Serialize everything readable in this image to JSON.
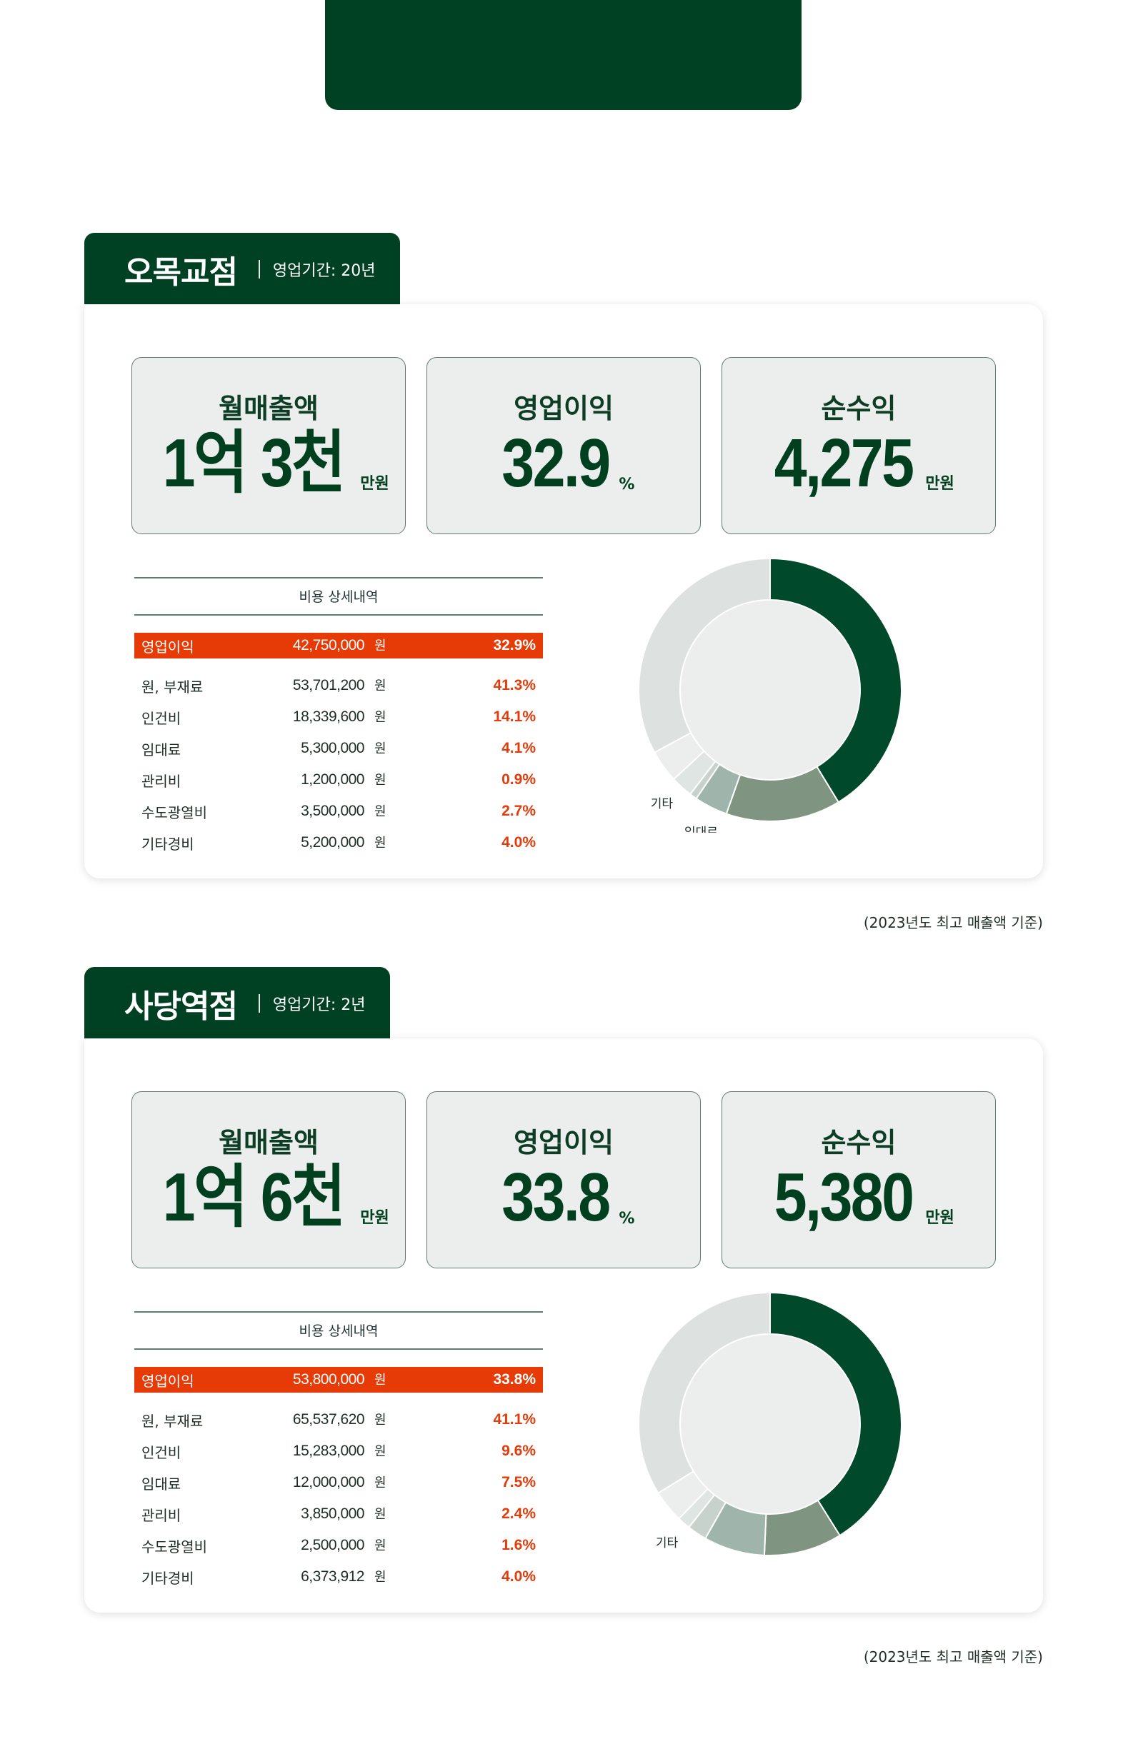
{
  "stores": [
    {
      "name": "오목교점",
      "period": "영업기간: 20년",
      "kpis": [
        {
          "label": "월매출액",
          "value": "1억 3천",
          "unit": "만원"
        },
        {
          "label": "영업이익",
          "value": "32.9",
          "unit": "%"
        },
        {
          "label": "순수익",
          "value": "4,275",
          "unit": "만원"
        }
      ],
      "cost_table": {
        "title": "비용 상세내역",
        "won": "원",
        "rows": [
          {
            "name": "영업이익",
            "amount": "42,750,000",
            "pct": "32.9%"
          },
          {
            "name": "원, 부재료",
            "amount": "53,701,200",
            "pct": "41.3%"
          },
          {
            "name": "인건비",
            "amount": "18,339,600",
            "pct": "14.1%"
          },
          {
            "name": "임대료",
            "amount": "5,300,000",
            "pct": "4.1%"
          },
          {
            "name": "관리비",
            "amount": "1,200,000",
            "pct": "0.9%"
          },
          {
            "name": "수도광열비",
            "amount": "3,500,000",
            "pct": "2.7%"
          },
          {
            "name": "기타경비",
            "amount": "5,200,000",
            "pct": "4.0%"
          }
        ]
      },
      "donut_labels": [
        "원, 부재료",
        "인건비",
        "임대료",
        "기타"
      ],
      "footnote": "(2023년도 최고 매출액 기준)"
    },
    {
      "name": "사당역점",
      "period": "영업기간: 2년",
      "kpis": [
        {
          "label": "월매출액",
          "value": "1억 6천",
          "unit": "만원"
        },
        {
          "label": "영업이익",
          "value": "33.8",
          "unit": "%"
        },
        {
          "label": "순수익",
          "value": "5,380",
          "unit": "만원"
        }
      ],
      "cost_table": {
        "title": "비용 상세내역",
        "won": "원",
        "rows": [
          {
            "name": "영업이익",
            "amount": "53,800,000",
            "pct": "33.8%"
          },
          {
            "name": "원, 부재료",
            "amount": "65,537,620",
            "pct": "41.1%"
          },
          {
            "name": "인건비",
            "amount": "15,283,000",
            "pct": "9.6%"
          },
          {
            "name": "임대료",
            "amount": "12,000,000",
            "pct": "7.5%"
          },
          {
            "name": "관리비",
            "amount": "3,850,000",
            "pct": "2.4%"
          },
          {
            "name": "수도광열비",
            "amount": "2,500,000",
            "pct": "1.6%"
          },
          {
            "name": "기타경비",
            "amount": "6,373,912",
            "pct": "4.0%"
          }
        ]
      },
      "donut_labels": [
        "원, 부재료",
        "인건비",
        "임대료",
        "기타"
      ],
      "footnote": "(2023년도 최고 매출액 기준)"
    }
  ],
  "chart_data": [
    {
      "type": "pie",
      "categories": [
        "원, 부재료",
        "인건비",
        "임대료",
        "관리비",
        "수도광열비",
        "기타경비",
        "영업이익"
      ],
      "values": [
        41.3,
        14.1,
        4.1,
        0.9,
        2.7,
        4.0,
        32.9
      ],
      "colors": [
        "#00492a",
        "#7f9582",
        "#9fb5ab",
        "#c7d2cd",
        "#dfe5e2",
        "#eceeed",
        "#dde1df"
      ],
      "labels_shown": [
        "원, 부재료",
        "인건비",
        "임대료",
        "기타"
      ]
    },
    {
      "type": "pie",
      "categories": [
        "원, 부재료",
        "인건비",
        "임대료",
        "관리비",
        "수도광열비",
        "기타경비",
        "영업이익"
      ],
      "values": [
        41.1,
        9.6,
        7.5,
        2.4,
        1.6,
        4.0,
        33.8
      ],
      "colors": [
        "#00492a",
        "#7f9582",
        "#9fb5ab",
        "#c7d2cd",
        "#dfe5e2",
        "#eceeed",
        "#dde1df"
      ],
      "labels_shown": [
        "원, 부재료",
        "인건비",
        "임대료",
        "기타"
      ]
    }
  ]
}
